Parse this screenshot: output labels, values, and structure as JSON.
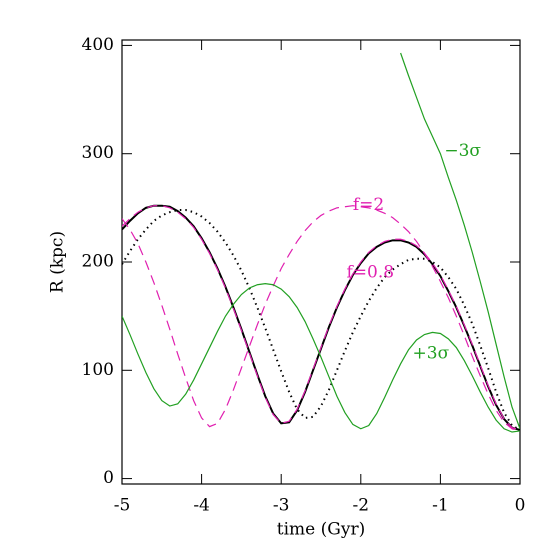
{
  "chart_data": {
    "type": "line",
    "xlabel": "time (Gyr)",
    "ylabel": "R (kpc)",
    "xlim": [
      -5,
      0
    ],
    "ylim": [
      -5,
      405
    ],
    "xticks": [
      -5,
      -4,
      -3,
      -2,
      -1,
      0
    ],
    "yticks": [
      0,
      100,
      200,
      300,
      400
    ],
    "x": [
      -5.0,
      -4.9,
      -4.8,
      -4.7,
      -4.6,
      -4.5,
      -4.4,
      -4.3,
      -4.2,
      -4.1,
      -4.0,
      -3.9,
      -3.8,
      -3.7,
      -3.6,
      -3.5,
      -3.4,
      -3.3,
      -3.2,
      -3.1,
      -3.0,
      -2.9,
      -2.8,
      -2.7,
      -2.6,
      -2.5,
      -2.4,
      -2.3,
      -2.2,
      -2.1,
      -2.0,
      -1.9,
      -1.8,
      -1.7,
      -1.6,
      -1.5,
      -1.4,
      -1.3,
      -1.2,
      -1.1,
      -1.0,
      -0.9,
      -0.8,
      -0.7,
      -0.6,
      -0.5,
      -0.4,
      -0.3,
      -0.2,
      -0.1,
      0
    ],
    "series": [
      {
        "color": "#000000",
        "style": "solid",
        "width": 2,
        "values": [
          230,
          238,
          245,
          250,
          252,
          252,
          251,
          247,
          241,
          233,
          222,
          209,
          194,
          177,
          158,
          138,
          117,
          96,
          76,
          60,
          51,
          52,
          63,
          80,
          100,
          120,
          140,
          158,
          174,
          188,
          199,
          208,
          214,
          218,
          220,
          220,
          218,
          214,
          207,
          198,
          187,
          173,
          158,
          141,
          123,
          104,
          85,
          68,
          55,
          47,
          45
        ]
      },
      {
        "color": "#000000",
        "style": "dotted",
        "width": 2,
        "values": [
          198,
          210,
          221,
          230,
          238,
          243,
          246,
          248,
          248,
          246,
          242,
          236,
          228,
          218,
          206,
          192,
          176,
          158,
          139,
          119,
          99,
          80,
          64,
          56,
          57,
          67,
          82,
          100,
          118,
          135,
          150,
          164,
          176,
          186,
          193,
          198,
          202,
          203,
          203,
          200,
          195,
          186,
          175,
          160,
          143,
          123,
          102,
          80,
          61,
          49,
          45
        ]
      },
      {
        "color": "#e020b0",
        "style": "dashed",
        "width": 1.2,
        "values": [
          240,
          230,
          217,
          200,
          181,
          160,
          138,
          115,
          93,
          72,
          56,
          48,
          51,
          64,
          82,
          102,
          122,
          142,
          161,
          178,
          194,
          207,
          219,
          229,
          237,
          243,
          247,
          250,
          251,
          252,
          251,
          250,
          248,
          245,
          241,
          235,
          228,
          219,
          208,
          196,
          182,
          167,
          150,
          132,
          113,
          95,
          78,
          63,
          52,
          46,
          44
        ]
      },
      {
        "color": "#e020b0",
        "style": "dashed",
        "width": 1.2,
        "values": [
          233,
          240,
          246,
          250,
          252,
          252,
          250,
          246,
          240,
          232,
          221,
          208,
          193,
          176,
          157,
          137,
          116,
          95,
          75,
          59,
          51,
          53,
          64,
          81,
          101,
          121,
          141,
          159,
          175,
          189,
          200,
          209,
          215,
          219,
          221,
          221,
          219,
          215,
          208,
          199,
          188,
          174,
          159,
          142,
          124,
          105,
          86,
          69,
          55,
          47,
          45
        ]
      },
      {
        "color": "#22a022",
        "style": "solid",
        "width": 1.2,
        "values": [
          150,
          133,
          115,
          98,
          83,
          72,
          67,
          69,
          78,
          91,
          106,
          121,
          136,
          150,
          161,
          170,
          176,
          179,
          180,
          179,
          175,
          168,
          158,
          145,
          129,
          112,
          94,
          76,
          61,
          50,
          46,
          49,
          60,
          75,
          91,
          106,
          119,
          128,
          133,
          135,
          134,
          129,
          121,
          109,
          95,
          80,
          66,
          54,
          46,
          43,
          44
        ]
      },
      {
        "color": "#22a022",
        "style": "solid",
        "width": 1.2,
        "values": [
          null,
          null,
          null,
          null,
          null,
          null,
          null,
          null,
          null,
          null,
          null,
          null,
          null,
          null,
          null,
          null,
          null,
          null,
          null,
          null,
          null,
          null,
          null,
          null,
          null,
          null,
          null,
          null,
          null,
          null,
          null,
          null,
          null,
          null,
          null,
          393,
          372,
          352,
          332,
          316,
          300,
          278,
          257,
          234,
          209,
          182,
          154,
          124,
          94,
          66,
          46
        ]
      }
    ],
    "annotations": [
      {
        "text": "−3σ",
        "x": -0.95,
        "y": 302,
        "color": "#22a022"
      },
      {
        "text": "f=2",
        "x": -2.1,
        "y": 252,
        "color": "#e020b0"
      },
      {
        "text": "f=0.8",
        "x": -2.18,
        "y": 190,
        "color": "#e020b0"
      },
      {
        "text": "+3σ",
        "x": -1.35,
        "y": 115,
        "color": "#22a022"
      }
    ]
  }
}
